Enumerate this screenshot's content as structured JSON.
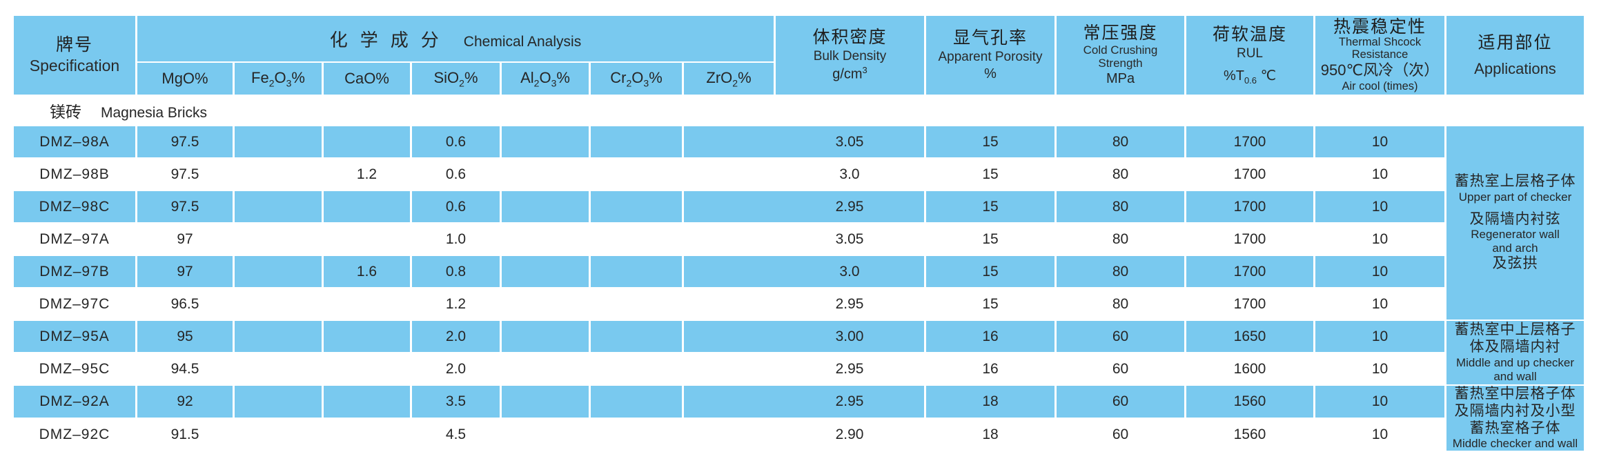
{
  "colors": {
    "cell_blue": "#79C9EF",
    "text": "#262626",
    "background": "#FFFFFF"
  },
  "header": {
    "specification": {
      "zh": "牌号",
      "en": "Specification"
    },
    "chemical": {
      "zh": "化学成分",
      "en": "Chemical Analysis"
    },
    "chem_cols": [
      "MgO%",
      "Fe2O3%",
      "CaO%",
      "SiO2%",
      "Al2O3%",
      "Cr2O3%",
      "ZrO2%"
    ],
    "bulk_density": {
      "zh": "体积密度",
      "en": "Bulk Density",
      "unit_base": "g/cm",
      "unit_exp": "3"
    },
    "porosity": {
      "zh": "显气孔率",
      "en": "Apparent Porosity",
      "unit": "%"
    },
    "ccs": {
      "zh": "常压强度",
      "en1": "Cold Crushing",
      "en2": "Strength",
      "unit": "MPa"
    },
    "rul": {
      "zh": "荷软温度",
      "en": "RUL",
      "unit_pre": "%T",
      "unit_sub": "0.6",
      "unit_post": "℃"
    },
    "tsr": {
      "zh": "热震稳定性",
      "en1": "Thermal Shcock",
      "en2": "Resistance",
      "zh2": "950℃风冷（次）",
      "en3": "Air cool (times)"
    },
    "applications": {
      "zh": "适用部位",
      "en": "Applications"
    }
  },
  "section": {
    "zh": "镁砖",
    "en": "Magnesia Bricks"
  },
  "rows": [
    {
      "spec": "DMZ–98A",
      "mgo": "97.5",
      "fe2o3": "",
      "cao": "",
      "sio2": "0.6",
      "al2o3": "",
      "cr2o3": "",
      "bd": "3.05",
      "ap": "15",
      "ccs": "80",
      "rul": "1700",
      "tsr": "10"
    },
    {
      "spec": "DMZ–98B",
      "mgo": "97.5",
      "fe2o3": "",
      "cao": "1.2",
      "sio2": "0.6",
      "al2o3": "",
      "cr2o3": "",
      "bd": "3.0",
      "ap": "15",
      "ccs": "80",
      "rul": "1700",
      "tsr": "10"
    },
    {
      "spec": "DMZ–98C",
      "mgo": "97.5",
      "fe2o3": "",
      "cao": "",
      "sio2": "0.6",
      "al2o3": "",
      "cr2o3": "",
      "bd": "2.95",
      "ap": "15",
      "ccs": "80",
      "rul": "1700",
      "tsr": "10"
    },
    {
      "spec": "DMZ–97A",
      "mgo": "97",
      "fe2o3": "",
      "cao": "",
      "sio2": "1.0",
      "al2o3": "",
      "cr2o3": "",
      "bd": "3.05",
      "ap": "15",
      "ccs": "80",
      "rul": "1700",
      "tsr": "10"
    },
    {
      "spec": "DMZ–97B",
      "mgo": "97",
      "fe2o3": "",
      "cao": "1.6",
      "sio2": "0.8",
      "al2o3": "",
      "cr2o3": "",
      "bd": "3.0",
      "ap": "15",
      "ccs": "80",
      "rul": "1700",
      "tsr": "10"
    },
    {
      "spec": "DMZ–97C",
      "mgo": "96.5",
      "fe2o3": "",
      "cao": "",
      "sio2": "1.2",
      "al2o3": "",
      "cr2o3": "",
      "bd": "2.95",
      "ap": "15",
      "ccs": "80",
      "rul": "1700",
      "tsr": "10"
    },
    {
      "spec": "DMZ–95A",
      "mgo": "95",
      "fe2o3": "",
      "cao": "",
      "sio2": "2.0",
      "al2o3": "",
      "cr2o3": "",
      "bd": "3.00",
      "ap": "16",
      "ccs": "60",
      "rul": "1650",
      "tsr": "10"
    },
    {
      "spec": "DMZ–95C",
      "mgo": "94.5",
      "fe2o3": "",
      "cao": "",
      "sio2": "2.0",
      "al2o3": "",
      "cr2o3": "",
      "bd": "2.95",
      "ap": "16",
      "ccs": "60",
      "rul": "1600",
      "tsr": "10"
    },
    {
      "spec": "DMZ–92A",
      "mgo": "92",
      "fe2o3": "",
      "cao": "",
      "sio2": "3.5",
      "al2o3": "",
      "cr2o3": "",
      "bd": "2.95",
      "ap": "18",
      "ccs": "60",
      "rul": "1560",
      "tsr": "10"
    },
    {
      "spec": "DMZ–92C",
      "mgo": "91.5",
      "fe2o3": "",
      "cao": "",
      "sio2": "4.5",
      "al2o3": "",
      "cr2o3": "",
      "bd": "2.90",
      "ap": "18",
      "ccs": "60",
      "rul": "1560",
      "tsr": "10"
    }
  ],
  "applications": [
    {
      "start": 0,
      "span": 6,
      "lines": [
        {
          "t": "zh",
          "s": "蓄热室上层格子体"
        },
        {
          "t": "en",
          "s": "Upper part of checker"
        },
        {
          "t": "zh",
          "s": "及隔墙内衬弦",
          "gap": true
        },
        {
          "t": "en",
          "s": "Regenerator wall"
        },
        {
          "t": "en",
          "s": "and arch"
        },
        {
          "t": "zh",
          "s": "及弦拱"
        }
      ]
    },
    {
      "start": 6,
      "span": 2,
      "lines": [
        {
          "t": "zh",
          "s": "蓄热室中上层格子"
        },
        {
          "t": "zh",
          "s": "体及隔墙内衬"
        },
        {
          "t": "en",
          "s": "Middle and up checker"
        },
        {
          "t": "en",
          "s": "and wall"
        }
      ]
    },
    {
      "start": 8,
      "span": 2,
      "lines": [
        {
          "t": "zh",
          "s": "蓄热室中层格子体"
        },
        {
          "t": "zh",
          "s": "及隔墙内衬及小型"
        },
        {
          "t": "zh",
          "s": "蓄热室格子体"
        },
        {
          "t": "en",
          "s": "Middle checker and wall"
        }
      ]
    }
  ]
}
